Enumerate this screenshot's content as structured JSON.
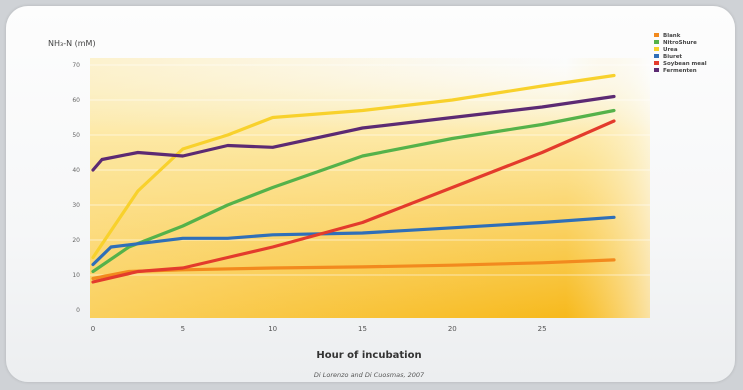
{
  "chart_data": {
    "type": "line",
    "ylabel": "NH₃-N (mM)",
    "xlabel": "Hour of incubation",
    "source": "Di Lorenzo and Di Cuosmas, 2007",
    "ylim": [
      0,
      70
    ],
    "xlim": [
      0,
      30
    ],
    "yticks": [
      "0",
      "10",
      "20",
      "30",
      "40",
      "50",
      "60",
      "70"
    ],
    "xticks": [
      "0",
      "5",
      "10",
      "15",
      "20",
      "25"
    ],
    "grid": true,
    "legend_position": "top-right",
    "series": [
      {
        "name": "Blank",
        "color": "#f28a1e",
        "x": [
          0,
          2,
          5,
          10,
          15,
          20,
          25,
          29
        ],
        "y": [
          9,
          11,
          11.5,
          12,
          12.3,
          12.8,
          13.5,
          14.3
        ]
      },
      {
        "name": "NitroShure",
        "color": "#55b24a",
        "x": [
          0,
          2,
          5,
          7.5,
          10,
          15,
          20,
          25,
          29
        ],
        "y": [
          11,
          18,
          24,
          30,
          35,
          44,
          49,
          53,
          57
        ]
      },
      {
        "name": "Urea",
        "color": "#f8d12c",
        "x": [
          0,
          2.5,
          5,
          7.5,
          10,
          15,
          20,
          25,
          29
        ],
        "y": [
          15,
          34,
          46,
          50,
          55,
          57,
          60,
          64,
          67
        ]
      },
      {
        "name": "Biuret",
        "color": "#2f6fb8",
        "x": [
          0,
          1,
          5,
          7.5,
          10,
          15,
          20,
          25,
          29
        ],
        "y": [
          13,
          18,
          20.5,
          20.5,
          21.5,
          22,
          23.5,
          25,
          26.5
        ]
      },
      {
        "name": "Soybean meal",
        "color": "#e33b2c",
        "x": [
          0,
          2.5,
          5,
          7.5,
          10,
          15,
          20,
          25,
          29
        ],
        "y": [
          8,
          11,
          12,
          15,
          18,
          25,
          35,
          45,
          54
        ]
      },
      {
        "name": "Fermenten",
        "color": "#5c2a73",
        "x": [
          0,
          0.5,
          2.5,
          5,
          7.5,
          10,
          15,
          20,
          25,
          29
        ],
        "y": [
          40,
          43,
          45,
          44,
          47,
          46.5,
          52,
          55,
          58,
          61
        ]
      }
    ]
  }
}
